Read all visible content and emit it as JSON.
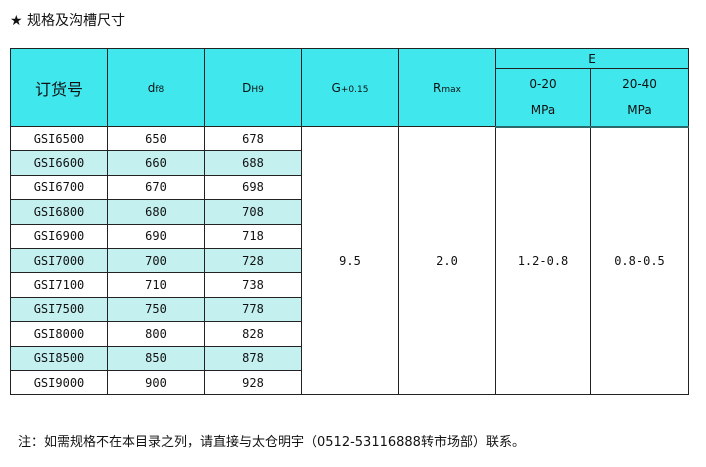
{
  "title": "★ 规格及沟槽尺寸",
  "headers": {
    "order_no": "订货号",
    "d": "d",
    "d_sub": "f8",
    "D": "D",
    "D_sub": "H9",
    "G": "G",
    "G_sub": "+0.15",
    "R": "R",
    "R_sub": "max",
    "E": "E",
    "E1": "0-20",
    "E1_unit": "MPa",
    "E2": "20-40",
    "E2_unit": "MPa"
  },
  "rows": [
    [
      "GSI6500",
      "650",
      "678"
    ],
    [
      "GSI6600",
      "660",
      "688"
    ],
    [
      "GSI6700",
      "670",
      "698"
    ],
    [
      "GSI6800",
      "680",
      "708"
    ],
    [
      "GSI6900",
      "690",
      "718"
    ],
    [
      "GSI7000",
      "700",
      "728"
    ],
    [
      "GSI7100",
      "710",
      "738"
    ],
    [
      "GSI7500",
      "750",
      "778"
    ],
    [
      "GSI8000",
      "800",
      "828"
    ],
    [
      "GSI8500",
      "850",
      "878"
    ],
    [
      "GSI9000",
      "900",
      "928"
    ]
  ],
  "shared": {
    "G": "9.5",
    "R": "2.0",
    "E1": "1.2-0.8",
    "E2": "0.8-0.5"
  },
  "note": "注：如需规格不在本目录之列，请直接与太仓明宇（0512-53116888转市场部）联系。",
  "colors": {
    "header": "#40e8ee",
    "alt_row": "#c4f0f0"
  }
}
